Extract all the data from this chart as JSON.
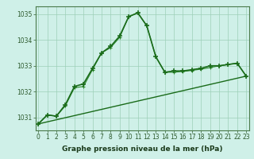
{
  "line1_x": [
    0,
    1,
    2,
    3,
    4,
    5,
    6,
    7,
    8,
    9,
    10,
    11,
    12,
    13,
    14,
    15,
    16,
    17,
    18,
    19,
    20,
    21,
    22,
    23
  ],
  "line1_y": [
    1030.75,
    1031.1,
    1031.05,
    1031.5,
    1032.2,
    1032.3,
    1032.9,
    1033.5,
    1033.75,
    1034.15,
    1034.9,
    1035.05,
    1034.55,
    1033.35,
    1032.75,
    1032.8,
    1032.8,
    1032.85,
    1032.9,
    1033.0,
    1033.0,
    1033.05,
    1033.1,
    1032.6
  ],
  "line2_x": [
    0,
    1,
    2,
    3,
    4,
    5,
    6,
    7,
    8,
    9,
    10,
    11,
    12,
    13,
    14,
    15,
    16,
    17,
    18,
    19,
    20,
    21,
    22,
    23
  ],
  "line2_y": [
    1030.75,
    1031.1,
    1031.05,
    1031.45,
    1032.15,
    1032.2,
    1032.85,
    1033.5,
    1033.7,
    1034.1,
    1034.9,
    1035.05,
    1034.55,
    1033.35,
    1032.75,
    1032.75,
    1032.78,
    1032.82,
    1032.87,
    1032.93,
    1033.0,
    1033.05,
    1033.1,
    1032.6
  ],
  "line3_x": [
    0,
    23
  ],
  "line3_y": [
    1030.75,
    1032.6
  ],
  "line_color_main": "#1a6b1a",
  "line_color_second": "#2d8a2d",
  "line_color_base": "#1a6b1a",
  "bg_color": "#cff0e8",
  "grid_color": "#9dcfb8",
  "xlabel": "Graphe pression niveau de la mer (hPa)",
  "yticks": [
    1031,
    1032,
    1033,
    1034,
    1035
  ],
  "xticks": [
    0,
    1,
    2,
    3,
    4,
    5,
    6,
    7,
    8,
    9,
    10,
    11,
    12,
    13,
    14,
    15,
    16,
    17,
    18,
    19,
    20,
    21,
    22,
    23
  ],
  "xlim": [
    -0.3,
    23.3
  ],
  "ylim": [
    1030.5,
    1035.3
  ],
  "tick_color": "#2d5a2d",
  "label_fontsize": 5.5,
  "xlabel_fontsize": 6.5
}
